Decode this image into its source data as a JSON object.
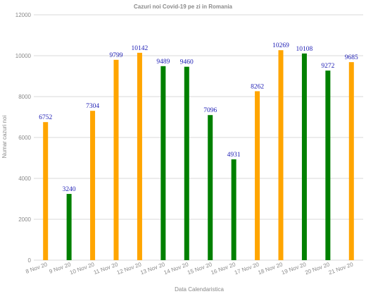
{
  "chart_data": {
    "type": "bar",
    "title": "Cazuri noi Covid-19 pe zi in Romania",
    "xlabel": "Data Calendaristica",
    "ylabel": "Numar cazuri noi",
    "ylim": [
      0,
      12000
    ],
    "yticks": [
      0,
      2000,
      4000,
      6000,
      8000,
      10000,
      12000
    ],
    "ytick_labels": [
      "0",
      "2000",
      "4000",
      "6000",
      "8000",
      "10000",
      "12000"
    ],
    "categories": [
      "8 Nov 20",
      "9 Nov 20",
      "10 Nov 20",
      "11 Nov 20",
      "12 Nov 20",
      "13 Nov 20",
      "14 Nov 20",
      "15 Nov 20",
      "16 Nov 20",
      "17 Nov 20",
      "18 Nov 20",
      "19 Nov 20",
      "20 Nov 20",
      "21 Nov 20"
    ],
    "values": [
      6752,
      3240,
      7304,
      9799,
      10142,
      9489,
      9460,
      7096,
      4931,
      8262,
      10269,
      10108,
      9272,
      9685
    ],
    "data_labels": [
      "6752",
      "3240",
      "7304",
      "9799",
      "10142",
      "9489",
      "9460",
      "7096",
      "4931",
      "8262",
      "10269",
      "10108",
      "9272",
      "9685"
    ],
    "bar_colors": [
      "#ffa500",
      "#008000",
      "#ffa500",
      "#ffa500",
      "#ffa500",
      "#008000",
      "#008000",
      "#008000",
      "#008000",
      "#ffa500",
      "#ffa500",
      "#008000",
      "#008000",
      "#ffa500"
    ],
    "grid": true,
    "legend": "none"
  },
  "colors": {
    "label": "#1c1cb4",
    "axis_text": "#8a8a8a",
    "grid": "#d9d9d9"
  }
}
